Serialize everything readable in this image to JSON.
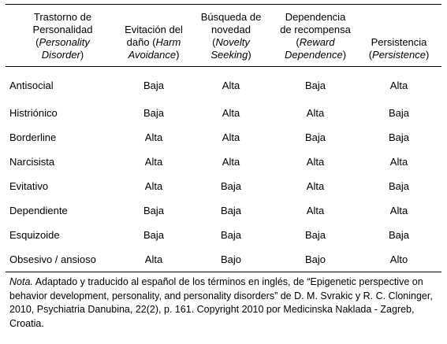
{
  "table": {
    "header": [
      {
        "lines": [
          [
            {
              "text": "Trastorno de"
            }
          ],
          [
            {
              "text": "Personalidad"
            }
          ],
          [
            {
              "text": "("
            },
            {
              "text": "Personality",
              "italic": true
            }
          ],
          [
            {
              "text": "Disorder",
              "italic": true
            },
            {
              "text": ")"
            }
          ]
        ]
      },
      {
        "lines": [
          [
            {
              "text": "Evitación del"
            }
          ],
          [
            {
              "text": "daño ("
            },
            {
              "text": "Harm",
              "italic": true
            }
          ],
          [
            {
              "text": "Avoidance",
              "italic": true
            },
            {
              "text": ")"
            }
          ]
        ]
      },
      {
        "lines": [
          [
            {
              "text": "Búsqueda de"
            }
          ],
          [
            {
              "text": "novedad"
            }
          ],
          [
            {
              "text": "("
            },
            {
              "text": "Novelty",
              "italic": true
            }
          ],
          [
            {
              "text": "Seeking",
              "italic": true
            },
            {
              "text": ")"
            }
          ]
        ]
      },
      {
        "lines": [
          [
            {
              "text": "Dependencia"
            }
          ],
          [
            {
              "text": "de recompensa"
            }
          ],
          [
            {
              "text": "("
            },
            {
              "text": "Reward",
              "italic": true
            }
          ],
          [
            {
              "text": "Dependence",
              "italic": true
            },
            {
              "text": ")"
            }
          ]
        ]
      },
      {
        "lines": [
          [
            {
              "text": "Persistencia"
            }
          ],
          [
            {
              "text": "("
            },
            {
              "text": "Persistence",
              "italic": true
            },
            {
              "text": ")"
            }
          ]
        ]
      }
    ],
    "rows": [
      [
        "Antisocial",
        "Baja",
        "Alta",
        "Baja",
        "Alta"
      ],
      [
        "Histriónico",
        "Baja",
        "Alta",
        "Alta",
        "Baja"
      ],
      [
        "Borderline",
        "Alta",
        "Alta",
        "Baja",
        "Baja"
      ],
      [
        "Narcisista",
        "Alta",
        "Alta",
        "Alta",
        "Alta"
      ],
      [
        "Evitativo",
        "Alta",
        "Baja",
        "Alta",
        "Baja"
      ],
      [
        "Dependiente",
        "Baja",
        "Baja",
        "Alta",
        "Alta"
      ],
      [
        "Esquizoide",
        "Baja",
        "Baja",
        "Baja",
        "Baja"
      ],
      [
        "Obsesivo / ansioso",
        "Alta",
        "Bajo",
        "Bajo",
        "Alto"
      ]
    ]
  },
  "note": {
    "label": "Nota.",
    "text": "Adaptado y traducido al español de los términos en inglés, de “Epigenetic perspective on behavior development, personality, and personality disorders” de D. M. Svrakic y R. C. Cloninger, 2010, Psychiatria Danubina, 22(2),  p. 161. Copyright 2010 por Medicinska Naklada - Zagreb, Croatia."
  }
}
